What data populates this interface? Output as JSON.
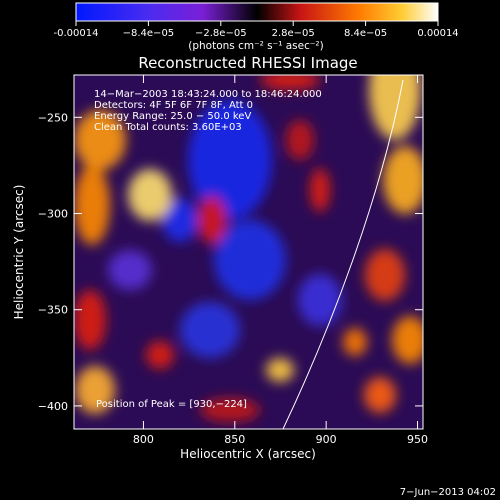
{
  "chart_data": {
    "type": "heatmap",
    "title": "Reconstructed RHESSI Image",
    "xlabel": "Heliocentric X (arcsec)",
    "ylabel": "Heliocentric Y (arcsec)",
    "xlim": [
      762,
      953
    ],
    "ylim": [
      -412,
      -228
    ],
    "xticks": [
      800,
      850,
      900,
      950
    ],
    "yticks": [
      -250,
      -300,
      -350,
      -400
    ],
    "colorbar": {
      "range": [
        -0.00014,
        0.00014
      ],
      "ticks": [
        "-0.00014",
        "−8.4e−05",
        "−2.8e−05",
        "2.8e−05",
        "8.4e−05",
        "0.00014"
      ],
      "units": "(photons cm⁻² s⁻¹ asec⁻²)",
      "colors": [
        "#0018ff",
        "#7a1fd6",
        "#000000",
        "#c81414",
        "#ff7a00",
        "#ffffff"
      ]
    },
    "annotations": [
      "14−Mar−2003 18:43:24.000 to 18:46:24.000",
      "Detectors: 4F 5F 6F 7F 8F, Att 0",
      "Energy Range: 25.0 − 50.0 keV",
      "Clean    Total counts: 3.60E+03"
    ],
    "peak_text": "Position of Peak = [930,−224]",
    "limb_color": "#ffffff",
    "timestamp": "7−Jun−2013 04:02"
  }
}
